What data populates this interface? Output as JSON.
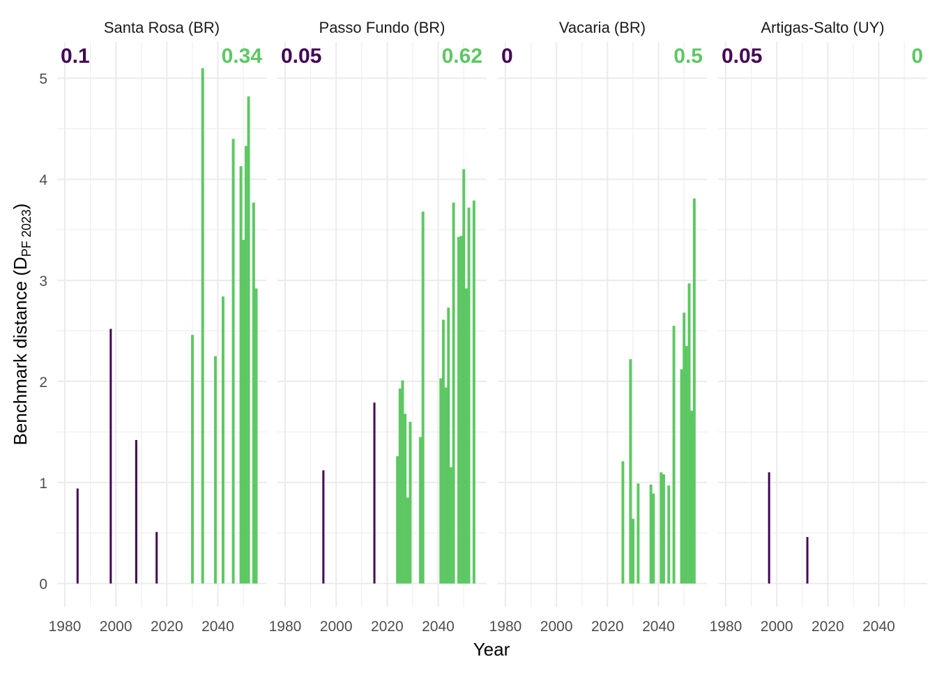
{
  "colors": {
    "before": "#440154",
    "after": "#5DC863",
    "grid": "#EBEBEB",
    "text": "#4D4D4D"
  },
  "chart_data": {
    "type": "bar",
    "xlabel": "Year",
    "ylabel": {
      "main": "Benchmark distance (D",
      "sub": "PF 2023",
      "close": ")"
    },
    "xlim": [
      1977,
      2059
    ],
    "ylim": [
      -0.23,
      5.36
    ],
    "x_ticks": [
      1980,
      2000,
      2020,
      2040
    ],
    "y_ticks": [
      0,
      1,
      2,
      3,
      4,
      5
    ],
    "grid": true,
    "facets": [
      {
        "title": "Santa Rosa (BR)",
        "left_label": "0.1",
        "right_label": "0.34",
        "before": [
          [
            1985,
            0.94
          ],
          [
            1998,
            2.52
          ],
          [
            2008,
            1.42
          ],
          [
            2016,
            0.51
          ]
        ],
        "after": [
          [
            2030,
            2.46
          ],
          [
            2034,
            5.1
          ],
          [
            2039,
            2.25
          ],
          [
            2042,
            2.84
          ],
          [
            2046,
            4.4
          ],
          [
            2049,
            4.13
          ],
          [
            2050,
            3.4
          ],
          [
            2051,
            4.33
          ],
          [
            2052,
            4.82
          ],
          [
            2054,
            3.77
          ],
          [
            2055,
            2.92
          ]
        ]
      },
      {
        "title": "Passo Fundo (BR)",
        "left_label": "0.05",
        "right_label": "0.62",
        "before": [
          [
            1995,
            1.12
          ],
          [
            2015,
            1.79
          ]
        ],
        "after": [
          [
            2024,
            1.26
          ],
          [
            2025,
            1.93
          ],
          [
            2026,
            2.01
          ],
          [
            2027,
            1.68
          ],
          [
            2028,
            0.85
          ],
          [
            2029,
            1.6
          ],
          [
            2033,
            1.45
          ],
          [
            2034,
            3.68
          ],
          [
            2041,
            2.03
          ],
          [
            2042,
            2.61
          ],
          [
            2043,
            1.94
          ],
          [
            2044,
            2.73
          ],
          [
            2045,
            1.15
          ],
          [
            2046,
            3.77
          ],
          [
            2048,
            3.43
          ],
          [
            2049,
            3.44
          ],
          [
            2050,
            4.1
          ],
          [
            2051,
            2.92
          ],
          [
            2052,
            3.72
          ],
          [
            2054,
            3.79
          ]
        ]
      },
      {
        "title": "Vacaria (BR)",
        "left_label": "0",
        "right_label": "0.5",
        "before": [],
        "after": [
          [
            2026,
            1.21
          ],
          [
            2029,
            2.22
          ],
          [
            2030,
            0.64
          ],
          [
            2032,
            0.99
          ],
          [
            2037,
            0.98
          ],
          [
            2038,
            0.89
          ],
          [
            2041,
            1.1
          ],
          [
            2042,
            1.08
          ],
          [
            2044,
            0.97
          ],
          [
            2046,
            2.55
          ],
          [
            2049,
            2.12
          ],
          [
            2050,
            2.68
          ],
          [
            2051,
            2.35
          ],
          [
            2052,
            2.97
          ],
          [
            2053,
            1.71
          ],
          [
            2054,
            3.81
          ]
        ]
      },
      {
        "title": "Artigas-Salto (UY)",
        "left_label": "0.05",
        "right_label": "0",
        "before": [
          [
            1997,
            1.1
          ],
          [
            2012,
            0.46
          ]
        ],
        "after": []
      }
    ]
  }
}
